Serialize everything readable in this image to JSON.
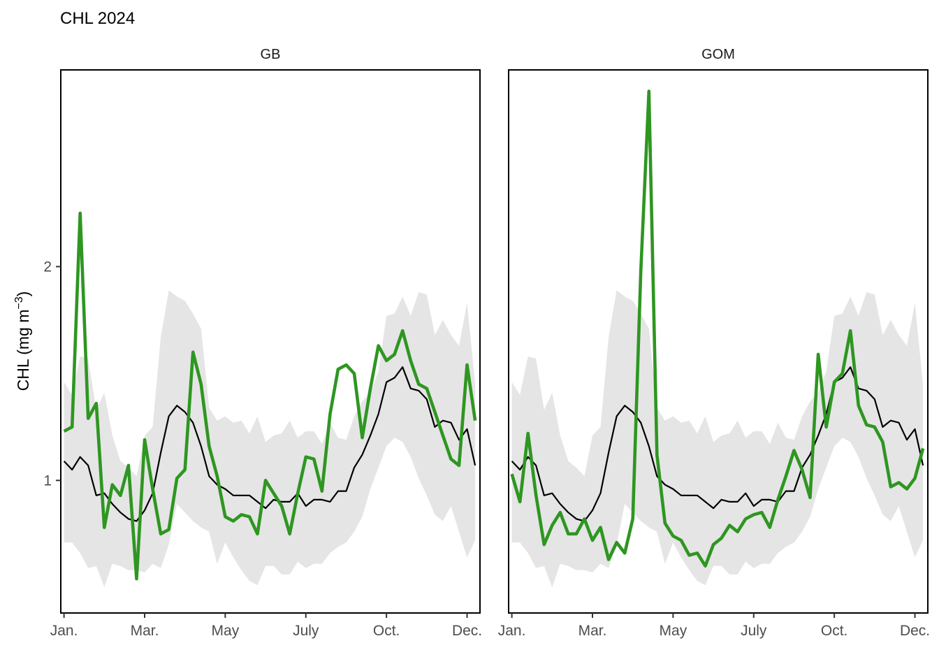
{
  "title": "CHL 2024",
  "y_axis_title": "CHL (mg m",
  "y_axis_superscript": "−3",
  "y_axis_close": ")",
  "colors": {
    "current_year": "#2E9621",
    "climatology_mean": "#000000",
    "band": "#E5E5E5"
  },
  "chart_data": [
    {
      "type": "line",
      "panel": "GB",
      "ylim": [
        0.38,
        2.92
      ],
      "y_ticks": [
        1,
        2
      ],
      "x_ticks": [
        {
          "week": 1,
          "label": "Jan."
        },
        {
          "week": 11,
          "label": "Mar."
        },
        {
          "week": 21,
          "label": "May"
        },
        {
          "week": 31,
          "label": "July"
        },
        {
          "week": 41,
          "label": "Oct."
        },
        {
          "week": 51,
          "label": "Dec."
        }
      ],
      "x_range": [
        0.6,
        52.6
      ],
      "grid": false,
      "series": [
        {
          "role": "band",
          "x": [
            1,
            2,
            3,
            4,
            5,
            6,
            7,
            8,
            9,
            10,
            11,
            12,
            13,
            14,
            15,
            16,
            17,
            18,
            19,
            20,
            21,
            22,
            23,
            24,
            25,
            26,
            27,
            28,
            29,
            30,
            31,
            32,
            33,
            34,
            35,
            36,
            37,
            38,
            39,
            40,
            41,
            42,
            43,
            44,
            45,
            46,
            47,
            48,
            49,
            50,
            51,
            52
          ],
          "upper": [
            1.46,
            1.4,
            1.58,
            1.57,
            1.33,
            1.41,
            1.21,
            1.09,
            1.06,
            1.02,
            1.21,
            1.25,
            1.67,
            1.89,
            1.86,
            1.84,
            1.78,
            1.71,
            1.34,
            1.28,
            1.3,
            1.27,
            1.28,
            1.22,
            1.3,
            1.18,
            1.21,
            1.22,
            1.28,
            1.2,
            1.23,
            1.23,
            1.17,
            1.27,
            1.2,
            1.19,
            1.3,
            1.37,
            1.41,
            1.51,
            1.77,
            1.78,
            1.86,
            1.77,
            1.88,
            1.87,
            1.68,
            1.75,
            1.68,
            1.63,
            1.83,
            1.45
          ],
          "lower": [
            0.71,
            0.71,
            0.66,
            0.59,
            0.6,
            0.5,
            0.61,
            0.6,
            0.58,
            0.58,
            0.57,
            0.61,
            0.59,
            0.7,
            0.89,
            0.85,
            0.81,
            0.78,
            0.76,
            0.61,
            0.71,
            0.64,
            0.58,
            0.53,
            0.51,
            0.6,
            0.6,
            0.56,
            0.56,
            0.62,
            0.59,
            0.61,
            0.61,
            0.66,
            0.69,
            0.71,
            0.76,
            0.83,
            0.96,
            1.06,
            1.16,
            1.2,
            1.18,
            1.11,
            1.01,
            0.93,
            0.84,
            0.81,
            0.88,
            0.76,
            0.64,
            0.72
          ]
        },
        {
          "role": "mean",
          "x": [
            1,
            2,
            3,
            4,
            5,
            6,
            7,
            8,
            9,
            10,
            11,
            12,
            13,
            14,
            15,
            16,
            17,
            18,
            19,
            20,
            21,
            22,
            23,
            24,
            25,
            26,
            27,
            28,
            29,
            30,
            31,
            32,
            33,
            34,
            35,
            36,
            37,
            38,
            39,
            40,
            41,
            42,
            43,
            44,
            45,
            46,
            47,
            48,
            49,
            50,
            51,
            52
          ],
          "values": [
            1.09,
            1.05,
            1.11,
            1.07,
            0.93,
            0.94,
            0.89,
            0.85,
            0.82,
            0.81,
            0.86,
            0.94,
            1.13,
            1.3,
            1.35,
            1.32,
            1.27,
            1.16,
            1.02,
            0.98,
            0.96,
            0.93,
            0.93,
            0.93,
            0.9,
            0.87,
            0.91,
            0.9,
            0.9,
            0.94,
            0.88,
            0.91,
            0.91,
            0.9,
            0.95,
            0.95,
            1.06,
            1.12,
            1.21,
            1.31,
            1.46,
            1.48,
            1.53,
            1.43,
            1.42,
            1.38,
            1.25,
            1.28,
            1.27,
            1.19,
            1.24,
            1.07
          ]
        },
        {
          "role": "current",
          "x": [
            1,
            2,
            3,
            4,
            5,
            6,
            7,
            8,
            9,
            10,
            11,
            12,
            13,
            14,
            15,
            16,
            17,
            18,
            19,
            20,
            21,
            22,
            23,
            24,
            25,
            26,
            27,
            28,
            29,
            30,
            31,
            32,
            33,
            34,
            35,
            36,
            37,
            38,
            39,
            40,
            41,
            42,
            43,
            44,
            45,
            46,
            47,
            48,
            49,
            50,
            51,
            52
          ],
          "values": [
            1.23,
            1.25,
            2.25,
            1.29,
            1.36,
            0.78,
            0.98,
            0.93,
            1.07,
            0.54,
            1.19,
            0.96,
            0.75,
            0.77,
            1.01,
            1.05,
            1.6,
            1.45,
            1.16,
            1.02,
            0.83,
            0.81,
            0.84,
            0.83,
            0.75,
            1.0,
            0.94,
            0.88,
            0.75,
            0.94,
            1.11,
            1.1,
            0.95,
            1.31,
            1.52,
            1.54,
            1.5,
            1.2,
            1.43,
            1.63,
            1.56,
            1.59,
            1.7,
            1.56,
            1.45,
            1.43,
            1.32,
            1.21,
            1.1,
            1.07,
            1.54,
            1.28
          ]
        }
      ]
    },
    {
      "type": "line",
      "panel": "GOM",
      "ylim": [
        0.38,
        2.92
      ],
      "y_ticks": [
        1,
        2
      ],
      "x_ticks": [
        {
          "week": 1,
          "label": "Jan."
        },
        {
          "week": 11,
          "label": "Mar."
        },
        {
          "week": 21,
          "label": "May"
        },
        {
          "week": 31,
          "label": "July"
        },
        {
          "week": 41,
          "label": "Oct."
        },
        {
          "week": 51,
          "label": "Dec."
        }
      ],
      "x_range": [
        0.6,
        52.6
      ],
      "grid": false,
      "series": [
        {
          "role": "band",
          "x": [
            1,
            2,
            3,
            4,
            5,
            6,
            7,
            8,
            9,
            10,
            11,
            12,
            13,
            14,
            15,
            16,
            17,
            18,
            19,
            20,
            21,
            22,
            23,
            24,
            25,
            26,
            27,
            28,
            29,
            30,
            31,
            32,
            33,
            34,
            35,
            36,
            37,
            38,
            39,
            40,
            41,
            42,
            43,
            44,
            45,
            46,
            47,
            48,
            49,
            50,
            51,
            52
          ],
          "upper": [
            1.46,
            1.4,
            1.58,
            1.57,
            1.33,
            1.41,
            1.21,
            1.09,
            1.06,
            1.02,
            1.21,
            1.25,
            1.67,
            1.89,
            1.86,
            1.84,
            1.78,
            1.71,
            1.34,
            1.28,
            1.3,
            1.27,
            1.28,
            1.22,
            1.3,
            1.18,
            1.21,
            1.22,
            1.28,
            1.2,
            1.23,
            1.23,
            1.17,
            1.27,
            1.2,
            1.19,
            1.3,
            1.37,
            1.41,
            1.51,
            1.77,
            1.78,
            1.86,
            1.77,
            1.88,
            1.87,
            1.68,
            1.75,
            1.68,
            1.63,
            1.83,
            1.45
          ],
          "lower": [
            0.71,
            0.71,
            0.66,
            0.59,
            0.6,
            0.5,
            0.61,
            0.6,
            0.58,
            0.58,
            0.57,
            0.61,
            0.59,
            0.7,
            0.89,
            0.85,
            0.81,
            0.78,
            0.76,
            0.61,
            0.71,
            0.64,
            0.58,
            0.53,
            0.51,
            0.6,
            0.6,
            0.56,
            0.56,
            0.62,
            0.59,
            0.61,
            0.61,
            0.66,
            0.69,
            0.71,
            0.76,
            0.83,
            0.96,
            1.06,
            1.16,
            1.2,
            1.18,
            1.11,
            1.01,
            0.93,
            0.84,
            0.81,
            0.88,
            0.76,
            0.64,
            0.72
          ]
        },
        {
          "role": "mean",
          "x": [
            1,
            2,
            3,
            4,
            5,
            6,
            7,
            8,
            9,
            10,
            11,
            12,
            13,
            14,
            15,
            16,
            17,
            18,
            19,
            20,
            21,
            22,
            23,
            24,
            25,
            26,
            27,
            28,
            29,
            30,
            31,
            32,
            33,
            34,
            35,
            36,
            37,
            38,
            39,
            40,
            41,
            42,
            43,
            44,
            45,
            46,
            47,
            48,
            49,
            50,
            51,
            52
          ],
          "values": [
            1.09,
            1.05,
            1.11,
            1.07,
            0.93,
            0.94,
            0.89,
            0.85,
            0.82,
            0.81,
            0.86,
            0.94,
            1.13,
            1.3,
            1.35,
            1.32,
            1.27,
            1.16,
            1.02,
            0.98,
            0.96,
            0.93,
            0.93,
            0.93,
            0.9,
            0.87,
            0.91,
            0.9,
            0.9,
            0.94,
            0.88,
            0.91,
            0.91,
            0.9,
            0.95,
            0.95,
            1.06,
            1.12,
            1.21,
            1.31,
            1.46,
            1.48,
            1.53,
            1.43,
            1.42,
            1.38,
            1.25,
            1.28,
            1.27,
            1.19,
            1.24,
            1.07
          ]
        },
        {
          "role": "current",
          "x": [
            1,
            2,
            3,
            4,
            5,
            6,
            7,
            8,
            9,
            10,
            11,
            12,
            13,
            14,
            15,
            16,
            17,
            18,
            19,
            20,
            21,
            22,
            23,
            24,
            25,
            26,
            27,
            28,
            29,
            30,
            31,
            32,
            33,
            34,
            35,
            36,
            37,
            38,
            39,
            40,
            41,
            42,
            43,
            44,
            45,
            46,
            47,
            48,
            49,
            50,
            51,
            52
          ],
          "values": [
            1.03,
            0.9,
            1.22,
            0.93,
            0.7,
            0.79,
            0.85,
            0.75,
            0.75,
            0.82,
            0.72,
            0.78,
            0.63,
            0.71,
            0.66,
            0.82,
            1.98,
            2.82,
            1.12,
            0.8,
            0.74,
            0.72,
            0.65,
            0.66,
            0.6,
            0.7,
            0.73,
            0.79,
            0.76,
            0.82,
            0.84,
            0.85,
            0.78,
            0.91,
            1.02,
            1.14,
            1.05,
            0.92,
            1.59,
            1.25,
            1.46,
            1.5,
            1.7,
            1.35,
            1.26,
            1.25,
            1.18,
            0.97,
            0.99,
            0.96,
            1.01,
            1.15
          ]
        }
      ]
    }
  ]
}
